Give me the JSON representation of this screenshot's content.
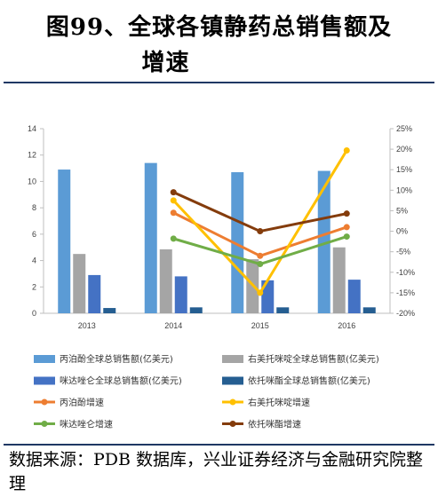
{
  "title": {
    "line1": "图99、全球各镇静药总销售额及",
    "line2": "增速"
  },
  "source": "数据来源：PDB 数据库，兴业证券经济与金融研究院整理",
  "colors": {
    "title_rule": "#1f3864",
    "bar_propofol": "#5b9bd5",
    "bar_dexmed": "#a5a5a5",
    "bar_midazolam": "#4472c4",
    "bar_etomidate": "#255e91",
    "line_propofol": "#ed7d31",
    "line_dexmed": "#ffc000",
    "line_midazolam": "#70ad47",
    "line_etomidate": "#843c0c"
  },
  "chart_data": {
    "type": "bar",
    "categories": [
      "2013",
      "2014",
      "2015",
      "2016"
    ],
    "ylim_left": [
      0,
      14
    ],
    "ylim_right": [
      -0.2,
      0.25
    ],
    "y_ticks_left": [
      "0",
      "2",
      "4",
      "6",
      "8",
      "10",
      "12",
      "14"
    ],
    "y_ticks_right": [
      "-20%",
      "-15%",
      "-10%",
      "-5%",
      "0%",
      "5%",
      "10%",
      "15%",
      "20%",
      "25%"
    ],
    "bar_series": [
      {
        "name": "丙泊酚全球总销售额(亿美元)",
        "values": [
          10.9,
          11.4,
          10.7,
          10.8
        ],
        "color": "#5b9bd5"
      },
      {
        "name": "右美托咪啶全球总销售额(亿美元)",
        "values": [
          4.5,
          4.85,
          4.1,
          5.0
        ],
        "color": "#a5a5a5"
      },
      {
        "name": "咪达唑仑全球总销售额(亿美元)",
        "values": [
          2.9,
          2.8,
          2.5,
          2.55
        ],
        "color": "#4472c4"
      },
      {
        "name": "依托咪酯全球总销售额(亿美元)",
        "values": [
          0.4,
          0.45,
          0.45,
          0.45
        ],
        "color": "#255e91"
      }
    ],
    "line_series": [
      {
        "name": "丙泊酚增速",
        "values": [
          null,
          0.045,
          -0.06,
          0.01
        ],
        "color": "#ed7d31"
      },
      {
        "name": "右美托咪啶增速",
        "values": [
          null,
          0.075,
          -0.15,
          0.197
        ],
        "color": "#ffc000"
      },
      {
        "name": "咪达唑仑增速",
        "values": [
          null,
          -0.018,
          -0.08,
          -0.013
        ],
        "color": "#70ad47"
      },
      {
        "name": "依托咪酯增速",
        "values": [
          null,
          0.095,
          0.0,
          0.043
        ],
        "color": "#843c0c"
      }
    ],
    "grid": false,
    "legend_position": "bottom"
  }
}
